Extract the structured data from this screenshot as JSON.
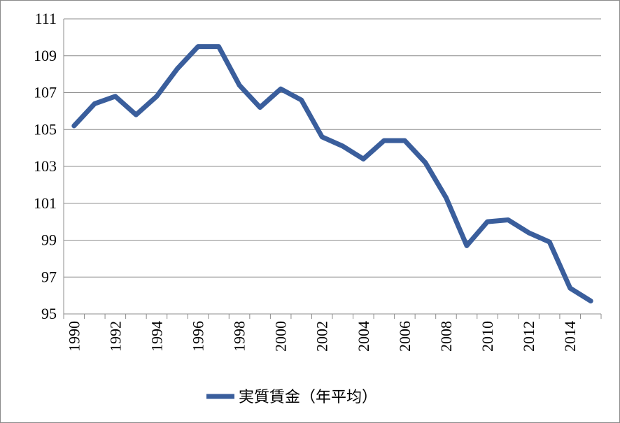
{
  "chart_data": {
    "type": "line",
    "x": [
      1990,
      1991,
      1992,
      1993,
      1994,
      1995,
      1996,
      1997,
      1998,
      1999,
      2000,
      2001,
      2002,
      2003,
      2004,
      2005,
      2006,
      2007,
      2008,
      2009,
      2010,
      2011,
      2012,
      2013,
      2014,
      2015
    ],
    "series": [
      {
        "name": "実質賃金（年平均）",
        "values": [
          105.2,
          106.4,
          106.8,
          105.8,
          106.8,
          108.3,
          109.5,
          109.5,
          107.4,
          106.2,
          107.2,
          106.6,
          104.6,
          104.1,
          103.4,
          104.4,
          104.4,
          103.2,
          101.3,
          98.7,
          100.0,
          100.1,
          99.4,
          98.9,
          96.4,
          95.7
        ],
        "color": "#3a5e9c"
      }
    ],
    "x_tick_labels": [
      "1990",
      "1992",
      "1994",
      "1996",
      "1998",
      "2000",
      "2002",
      "2004",
      "2006",
      "2008",
      "2010",
      "2012",
      "2014"
    ],
    "y_tick_labels": [
      "95",
      "97",
      "99",
      "101",
      "103",
      "105",
      "107",
      "109",
      "111"
    ],
    "ylim": [
      95,
      111
    ],
    "grid": "horizontal",
    "legend_position": "bottom"
  }
}
